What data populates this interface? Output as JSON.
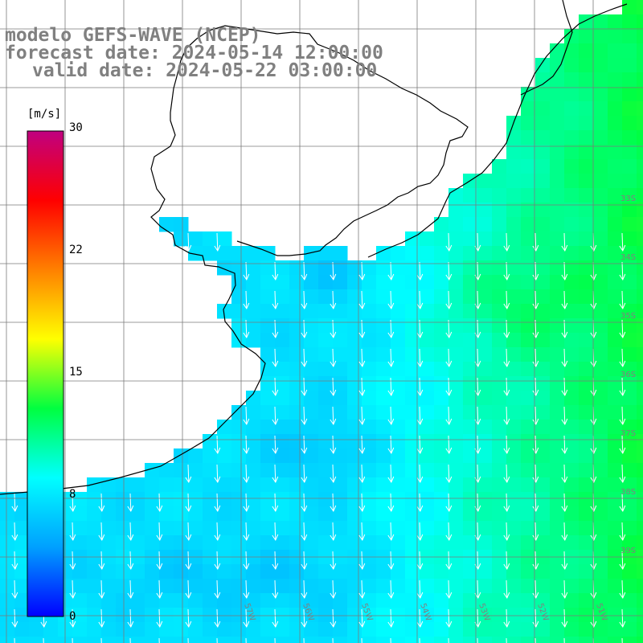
{
  "title": {
    "model": "modelo GEFS-WAVE (NCEP)",
    "forecast": "forecast date: 2024-05-14 12:00:00",
    "valid": "valid date: 2024-05-22 03:00:00"
  },
  "colorbar": {
    "unit": "[m/s]",
    "ticks": [
      "30",
      "22",
      "15",
      "8",
      "0"
    ],
    "tick_values": [
      30,
      22,
      15,
      8,
      0
    ],
    "min": 0,
    "max": 30,
    "colors": [
      "#0000ff",
      "#00a0ff",
      "#00ffff",
      "#00ff40",
      "#ffff00",
      "#ff8000",
      "#ff0000",
      "#c00080"
    ]
  },
  "map": {
    "variable": "wind speed",
    "region": "South Atlantic – Río de la Plata / southern Brazil",
    "land_color": "#ffffff",
    "coast_color": "#000000",
    "arrow_color": "#ffffff",
    "lon_labels": [
      "57W",
      "56W",
      "55W",
      "54W",
      "53W",
      "52W",
      "51W"
    ],
    "lat_labels": [
      "33S",
      "34S",
      "35S",
      "36S",
      "37S",
      "38S",
      "39S"
    ]
  }
}
